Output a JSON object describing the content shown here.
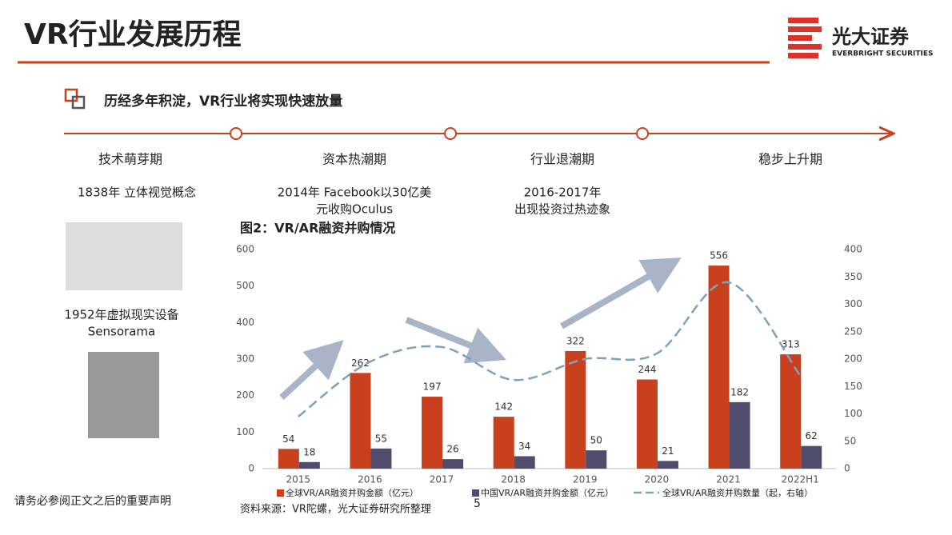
{
  "header": {
    "title": "VR行业发展历程",
    "logo_name": "光大证券",
    "logo_subtitle": "EVERBRIGHT SECURITIES"
  },
  "subtitle": "历经多年积淀，VR行业将实现快速放量",
  "timeline": {
    "phases": [
      {
        "name": "技术萌芽期",
        "description": [
          "1838年 立体视觉概念"
        ]
      },
      {
        "name": "资本热潮期",
        "description": [
          "2014年 Facebook以30亿美",
          "元收购Oculus"
        ]
      },
      {
        "name": "行业退潮期",
        "description": [
          "2016-2017年",
          "出现投资过热迹象"
        ]
      },
      {
        "name": "稳步上升期",
        "description": []
      }
    ]
  },
  "early_device": [
    "1952年虚拟现实设备",
    "Sensorama"
  ],
  "chart_data": {
    "type": "bar",
    "title": "图2：VR/AR融资并购情况",
    "categories": [
      "2015",
      "2016",
      "2017",
      "2018",
      "2019",
      "2020",
      "2021",
      "2022H1"
    ],
    "series": [
      {
        "name": "全球VR/AR融资并购金额（亿元）",
        "color": "#c8401e",
        "values": [
          54,
          262,
          197,
          142,
          322,
          244,
          556,
          313
        ]
      },
      {
        "name": "中国VR/AR融资并购金额（亿元）",
        "color": "#4f4c6e",
        "values": [
          18,
          55,
          26,
          34,
          50,
          21,
          182,
          62
        ]
      },
      {
        "name": "全球VR/AR融资并购数量（起，右轴）",
        "color": "#7aa3bf",
        "type": "line",
        "axis": "y2",
        "values": [
          95,
          195,
          222,
          162,
          200,
          210,
          340,
          170
        ]
      }
    ],
    "ylim": [
      0,
      600
    ],
    "yticks": [
      0,
      100,
      200,
      300,
      400,
      500,
      600
    ],
    "y2lim": [
      0,
      400
    ],
    "y2ticks": [
      0,
      50,
      100,
      150,
      200,
      250,
      300,
      350,
      400
    ],
    "source": "资料来源：VR陀螺，光大证券研究所整理"
  },
  "footer": "请务必参阅正文之后的重要声明",
  "page_number": "5"
}
